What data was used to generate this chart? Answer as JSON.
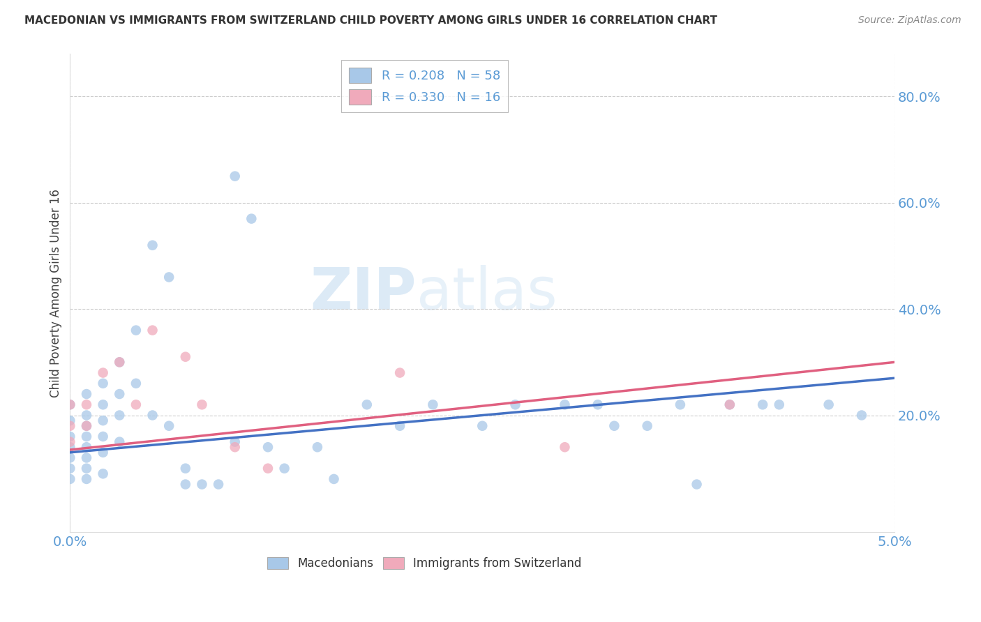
{
  "title": "MACEDONIAN VS IMMIGRANTS FROM SWITZERLAND CHILD POVERTY AMONG GIRLS UNDER 16 CORRELATION CHART",
  "source": "Source: ZipAtlas.com",
  "ylabel": "Child Poverty Among Girls Under 16",
  "ytick_vals": [
    0.2,
    0.4,
    0.6,
    0.8
  ],
  "xlim": [
    0.0,
    0.05
  ],
  "ylim": [
    -0.02,
    0.88
  ],
  "legend_r1": "0.208",
  "legend_n1": "58",
  "legend_r2": "0.330",
  "legend_n2": "16",
  "color_macedonian": "#A8C8E8",
  "color_swiss": "#F0AABB",
  "color_line_macedonian": "#4472C4",
  "color_line_swiss": "#E06080",
  "watermark_zip": "ZIP",
  "watermark_atlas": "atlas",
  "mac_line_x0": 0.0,
  "mac_line_x1": 0.05,
  "mac_line_y0": 0.13,
  "mac_line_y1": 0.27,
  "swi_line_x0": 0.0,
  "swi_line_x1": 0.05,
  "swi_line_y0": 0.135,
  "swi_line_y1": 0.3,
  "macedonian_x": [
    0.0,
    0.0,
    0.0,
    0.0,
    0.0,
    0.0,
    0.0,
    0.001,
    0.001,
    0.001,
    0.001,
    0.001,
    0.001,
    0.001,
    0.001,
    0.002,
    0.002,
    0.002,
    0.002,
    0.002,
    0.002,
    0.003,
    0.003,
    0.003,
    0.003,
    0.004,
    0.004,
    0.005,
    0.005,
    0.006,
    0.006,
    0.007,
    0.007,
    0.008,
    0.009,
    0.01,
    0.01,
    0.011,
    0.012,
    0.013,
    0.015,
    0.016,
    0.018,
    0.02,
    0.022,
    0.025,
    0.027,
    0.03,
    0.032,
    0.033,
    0.035,
    0.037,
    0.038,
    0.04,
    0.042,
    0.043,
    0.046,
    0.048
  ],
  "macedonian_y": [
    0.22,
    0.19,
    0.16,
    0.14,
    0.12,
    0.1,
    0.08,
    0.24,
    0.2,
    0.18,
    0.16,
    0.14,
    0.12,
    0.1,
    0.08,
    0.26,
    0.22,
    0.19,
    0.16,
    0.13,
    0.09,
    0.3,
    0.24,
    0.2,
    0.15,
    0.36,
    0.26,
    0.52,
    0.2,
    0.46,
    0.18,
    0.1,
    0.07,
    0.07,
    0.07,
    0.65,
    0.15,
    0.57,
    0.14,
    0.1,
    0.14,
    0.08,
    0.22,
    0.18,
    0.22,
    0.18,
    0.22,
    0.22,
    0.22,
    0.18,
    0.18,
    0.22,
    0.07,
    0.22,
    0.22,
    0.22,
    0.22,
    0.2
  ],
  "swiss_x": [
    0.0,
    0.0,
    0.0,
    0.001,
    0.001,
    0.002,
    0.003,
    0.004,
    0.005,
    0.007,
    0.008,
    0.01,
    0.012,
    0.02,
    0.03,
    0.04
  ],
  "swiss_y": [
    0.22,
    0.18,
    0.15,
    0.22,
    0.18,
    0.28,
    0.3,
    0.22,
    0.36,
    0.31,
    0.22,
    0.14,
    0.1,
    0.28,
    0.14,
    0.22
  ]
}
